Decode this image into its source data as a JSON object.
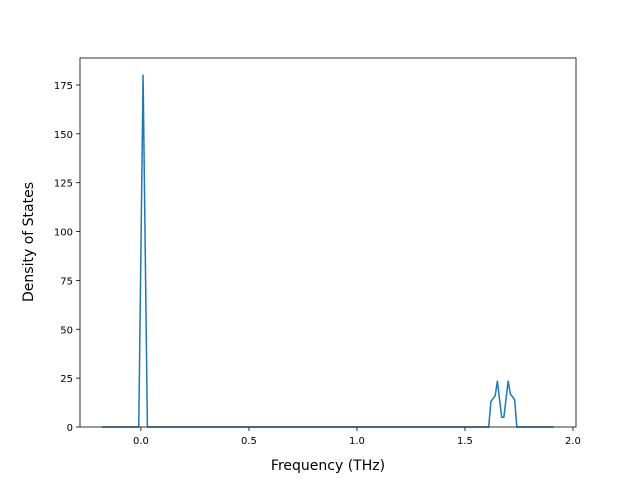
{
  "chart_data": {
    "type": "line",
    "xlabel": "Frequency (THz)",
    "ylabel": "Density of States",
    "x": [
      -0.18,
      -0.01,
      0.01,
      0.03,
      1.61,
      1.62,
      1.64,
      1.65,
      1.67,
      1.68,
      1.7,
      1.71,
      1.73,
      1.74,
      1.91
    ],
    "series": [
      {
        "color": "#1f77b4",
        "values": [
          0,
          0,
          180,
          0,
          0,
          13,
          16,
          23.5,
          5,
          5,
          23.5,
          17,
          14,
          0,
          0
        ]
      }
    ],
    "xlim": [
      -0.282,
      2.014
    ],
    "xticks": [
      {
        "value": 0,
        "label": "0.0"
      },
      {
        "value": 0.5,
        "label": "0.5"
      },
      {
        "value": 1,
        "label": "1.0"
      },
      {
        "value": 1.5,
        "label": "1.5"
      },
      {
        "value": 2,
        "label": "2.0"
      }
    ],
    "ylim": [
      0,
      188.8
    ],
    "yticks": [
      0,
      25,
      50,
      75,
      100,
      125,
      150,
      175
    ]
  }
}
